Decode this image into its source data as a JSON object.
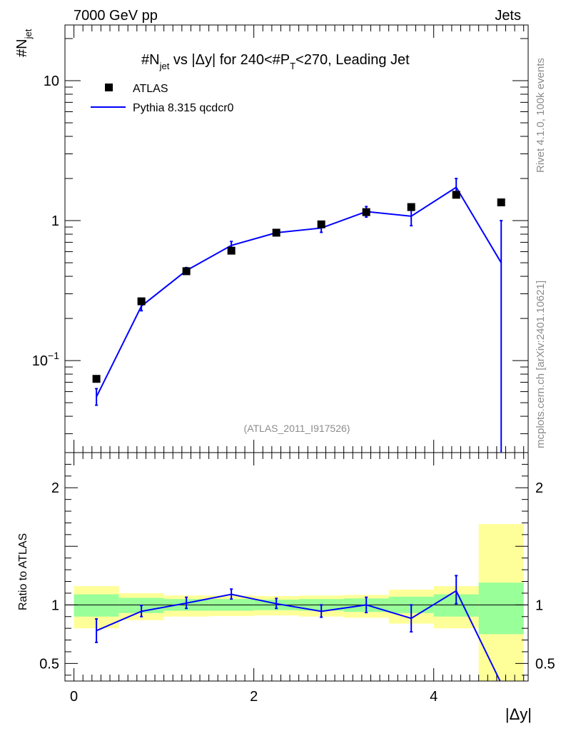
{
  "header": {
    "left": "7000 GeV pp",
    "right": "Jets"
  },
  "title": {
    "prefix": "#N",
    "sub1": "jet",
    "mid": " vs |Δy| for 240<#P",
    "sub2": "T",
    "suffix": "<270, Leading Jet"
  },
  "ylabel_top": {
    "main": "#N",
    "sub": "jet"
  },
  "ylabel_bottom": "Ratio to ATLAS",
  "xlabel": "|Δy|",
  "watermark": "(ATLAS_2011_I917526)",
  "side_text_top": "Rivet 4.1.0,  100k events",
  "side_text_bottom": "mcplots.cern.ch [arXiv:2401.10621]",
  "legend": {
    "data_label": "ATLAS",
    "mc_label": "Pythia 8.315 qcdcr0"
  },
  "colors": {
    "mc": "#0000ff",
    "band_inner": "#99ff99",
    "band_outer": "#ffff99",
    "data": "#000000"
  },
  "chart_data": [
    {
      "type": "scatter+line",
      "panel": "main",
      "yscale": "log",
      "xlim": [
        -0.1,
        5.05
      ],
      "ylim": [
        0.022,
        25
      ],
      "yticks": [
        {
          "value": 0.1,
          "base": "10",
          "exp": "−1"
        },
        {
          "value": 1,
          "label": "1"
        },
        {
          "value": 10,
          "label": "10"
        }
      ],
      "x": [
        0.25,
        0.75,
        1.25,
        1.75,
        2.25,
        2.75,
        3.25,
        3.75,
        4.25,
        4.75
      ],
      "series": [
        {
          "name": "ATLAS",
          "values": [
            0.074,
            0.265,
            0.435,
            0.61,
            0.82,
            0.94,
            1.15,
            1.25,
            1.53,
            1.35
          ]
        },
        {
          "name": "Pythia 8.315 qcdcr0",
          "values": [
            0.055,
            0.245,
            0.44,
            0.665,
            0.82,
            0.885,
            1.16,
            1.075,
            1.73,
            0.5
          ],
          "err_lo": [
            0.048,
            0.227,
            0.418,
            0.625,
            0.79,
            0.825,
            1.06,
            0.92,
            1.5,
            0.0001
          ],
          "err_hi": [
            0.063,
            0.264,
            0.462,
            0.71,
            0.85,
            0.945,
            1.26,
            1.23,
            2.0,
            1.0
          ]
        }
      ]
    },
    {
      "type": "ratio",
      "panel": "ratio",
      "ylim": [
        0.35,
        2.3
      ],
      "yticks": [
        0.5,
        1,
        2
      ],
      "xticks": [
        0,
        2,
        4
      ],
      "bins": [
        [
          0,
          0.5
        ],
        [
          0.5,
          1
        ],
        [
          1,
          1.5
        ],
        [
          1.5,
          2
        ],
        [
          2,
          2.5
        ],
        [
          2.5,
          3
        ],
        [
          3,
          3.5
        ],
        [
          3.5,
          4
        ],
        [
          4,
          4.5
        ],
        [
          4.5,
          5
        ]
      ],
      "band_inner": [
        [
          0.9,
          1.09
        ],
        [
          0.93,
          1.06
        ],
        [
          0.95,
          1.05
        ],
        [
          0.95,
          1.05
        ],
        [
          0.955,
          1.045
        ],
        [
          0.95,
          1.05
        ],
        [
          0.94,
          1.055
        ],
        [
          0.93,
          1.07
        ],
        [
          0.9,
          1.09
        ],
        [
          0.75,
          1.19
        ]
      ],
      "band_outer": [
        [
          0.8,
          1.16
        ],
        [
          0.87,
          1.1
        ],
        [
          0.9,
          1.08
        ],
        [
          0.905,
          1.08
        ],
        [
          0.91,
          1.075
        ],
        [
          0.9,
          1.08
        ],
        [
          0.89,
          1.085
        ],
        [
          0.84,
          1.13
        ],
        [
          0.8,
          1.16
        ],
        [
          0.35,
          1.69
        ]
      ],
      "mc_ratio": {
        "values": [
          0.78,
          0.945,
          1.015,
          1.09,
          1.01,
          0.945,
          1.0,
          0.885,
          1.12,
          0.33
        ],
        "err_lo": [
          0.68,
          0.9,
          0.97,
          1.05,
          0.97,
          0.895,
          0.935,
          0.77,
          1.01,
          0.33
        ],
        "err_hi": [
          0.88,
          0.995,
          1.065,
          1.135,
          1.055,
          1.0,
          1.065,
          1.0,
          1.25,
          0.33
        ]
      }
    }
  ]
}
